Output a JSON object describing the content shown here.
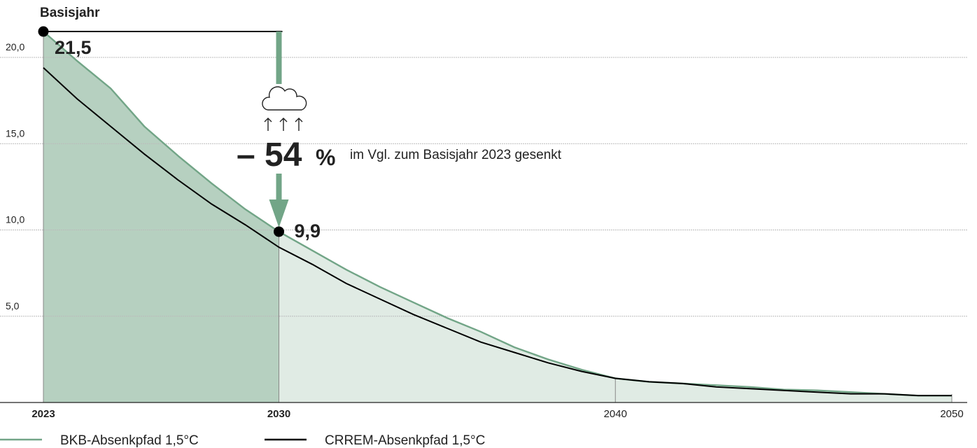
{
  "chart_data": {
    "type": "area",
    "x": [
      2023,
      2024,
      2025,
      2026,
      2027,
      2028,
      2029,
      2030,
      2031,
      2032,
      2033,
      2034,
      2035,
      2036,
      2037,
      2038,
      2039,
      2040,
      2041,
      2042,
      2043,
      2044,
      2045,
      2046,
      2047,
      2048,
      2049,
      2050
    ],
    "series": [
      {
        "name": "BKB-Absenkpfad 1,5°C",
        "color": "#72a587",
        "values": [
          21.5,
          19.8,
          18.2,
          16.0,
          14.3,
          12.7,
          11.2,
          9.9,
          8.8,
          7.7,
          6.7,
          5.8,
          4.9,
          4.1,
          3.2,
          2.5,
          1.9,
          1.4,
          1.2,
          1.1,
          1.0,
          0.9,
          0.75,
          0.7,
          0.6,
          0.5,
          0.4,
          0.4
        ]
      },
      {
        "name": "CRREM-Absenkpfad 1,5°C",
        "color": "#000000",
        "values": [
          19.4,
          17.6,
          16.0,
          14.4,
          12.9,
          11.5,
          10.3,
          9.0,
          8.0,
          6.9,
          6.0,
          5.1,
          4.3,
          3.5,
          2.9,
          2.3,
          1.8,
          1.4,
          1.2,
          1.1,
          0.9,
          0.8,
          0.7,
          0.6,
          0.5,
          0.5,
          0.4,
          0.4
        ]
      }
    ],
    "area_colors": [
      "#b6d0c0",
      "#e0ebe4"
    ],
    "xlim": [
      2023,
      2050
    ],
    "xticks": [
      2023,
      2030,
      2040,
      2050
    ],
    "ylim": [
      0,
      20
    ],
    "yticks": [
      {
        "value": 5,
        "label": "5,0"
      },
      {
        "value": 10,
        "label": "10,0"
      },
      {
        "value": 15,
        "label": "15,0"
      },
      {
        "value": 20,
        "label": "20,0"
      }
    ],
    "grid": true,
    "base_label": "Basisjahr",
    "highlights": [
      {
        "x": 2023,
        "label": "21,5"
      },
      {
        "x": 2030,
        "label": "9,9"
      }
    ],
    "reduction_label": "– 54",
    "reduction_unit": "%",
    "reduction_text": "im Vgl. zum Basisjahr 2023 gesenkt"
  }
}
